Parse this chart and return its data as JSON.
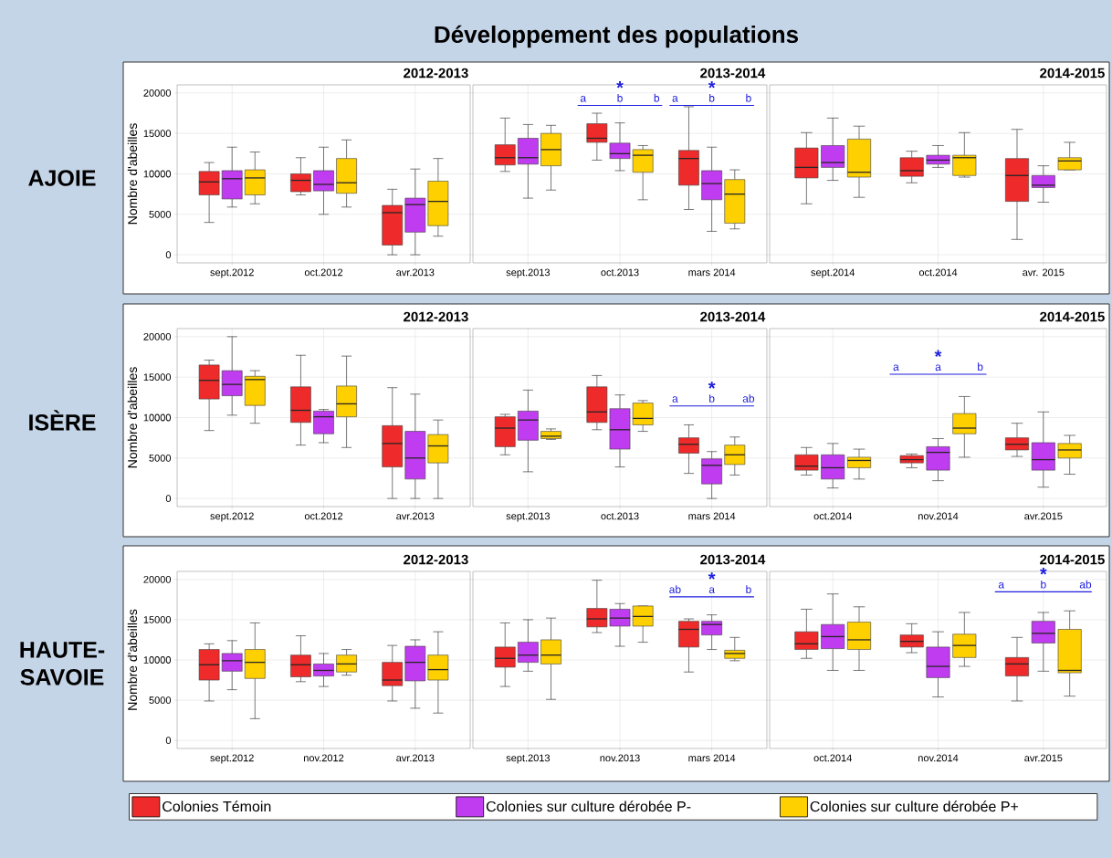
{
  "chart_data": [
    {
      "type": "box",
      "title": "2012-2013",
      "subtitle": "AJOIE",
      "ylabel": "Nombre d'abeilles",
      "annotations": [
        "Développement des populations"
      ],
      "categories": [
        "sept.2012",
        "oct.2012",
        "avr.2013"
      ],
      "ylim": [
        -1000,
        21000
      ],
      "yticks": [
        0,
        5000,
        10000,
        15000,
        20000
      ],
      "grid": true,
      "series": [
        {
          "color": "#ee2a2a",
          "boxes": [
            {
              "low": 4000,
              "q1": 7400,
              "median": 9000,
              "q3": 10300,
              "high": 11400
            },
            {
              "low": 7400,
              "q1": 7800,
              "median": 9200,
              "q3": 10000,
              "high": 12000
            },
            {
              "low": 0,
              "q1": 1200,
              "median": 5200,
              "q3": 6100,
              "high": 8100
            }
          ]
        },
        {
          "color": "#c03cf0",
          "boxes": [
            {
              "low": 5900,
              "q1": 6900,
              "median": 9400,
              "q3": 10400,
              "high": 13300
            },
            {
              "low": 5000,
              "q1": 7900,
              "median": 8700,
              "q3": 10400,
              "high": 13300
            },
            {
              "low": 0,
              "q1": 2800,
              "median": 6200,
              "q3": 7000,
              "high": 10600
            }
          ]
        },
        {
          "color": "#ffd000",
          "boxes": [
            {
              "low": 6300,
              "q1": 7400,
              "median": 9500,
              "q3": 10500,
              "high": 12700
            },
            {
              "low": 5900,
              "q1": 7600,
              "median": 8900,
              "q3": 11900,
              "high": 14200
            },
            {
              "low": 2300,
              "q1": 3600,
              "median": 6600,
              "q3": 9100,
              "high": 11900
            }
          ]
        }
      ]
    },
    {
      "type": "box",
      "title": "2013-2014",
      "tick_labels": "x",
      "categories": [
        "sept.2013",
        "oct.2013",
        "mars 2014"
      ],
      "ylim": [
        -1000,
        21000
      ],
      "yticks": [
        0,
        5000,
        10000,
        15000,
        20000
      ],
      "grid": true,
      "annotations": [
        "a",
        "b",
        "b",
        "*",
        "a",
        "b",
        "b",
        "*"
      ],
      "series": [
        {
          "color": "#ee2a2a",
          "boxes": [
            {
              "low": 10300,
              "q1": 11100,
              "median": 12000,
              "q3": 13600,
              "high": 16900
            },
            {
              "low": 11700,
              "q1": 13900,
              "median": 14400,
              "q3": 16200,
              "high": 17500
            },
            {
              "low": 5600,
              "q1": 8600,
              "median": 11900,
              "q3": 12900,
              "high": 18300
            }
          ]
        },
        {
          "color": "#c03cf0",
          "boxes": [
            {
              "low": 7000,
              "q1": 11200,
              "median": 12000,
              "q3": 14400,
              "high": 16100
            },
            {
              "low": 10400,
              "q1": 11900,
              "median": 12500,
              "q3": 13800,
              "high": 16300
            },
            {
              "low": 2900,
              "q1": 6800,
              "median": 8800,
              "q3": 10400,
              "high": 13300
            }
          ]
        },
        {
          "color": "#ffd000",
          "boxes": [
            {
              "low": 8000,
              "q1": 11000,
              "median": 13000,
              "q3": 15000,
              "high": 16000
            },
            {
              "low": 6800,
              "q1": 10200,
              "median": 12300,
              "q3": 13000,
              "high": 13500
            },
            {
              "low": 3200,
              "q1": 3900,
              "median": 7500,
              "q3": 9300,
              "high": 10500
            }
          ]
        }
      ]
    },
    {
      "type": "box",
      "title": "2014-2015",
      "tick_labels": "x",
      "categories": [
        "sept.2014",
        "oct.2014",
        "avr. 2015"
      ],
      "ylim": [
        -1000,
        21000
      ],
      "yticks": [
        0,
        5000,
        10000,
        15000,
        20000
      ],
      "grid": true,
      "series": [
        {
          "color": "#ee2a2a",
          "boxes": [
            {
              "low": 6300,
              "q1": 9500,
              "median": 10800,
              "q3": 13200,
              "high": 15100
            },
            {
              "low": 8900,
              "q1": 9700,
              "median": 10400,
              "q3": 12000,
              "high": 12800
            },
            {
              "low": 1900,
              "q1": 6600,
              "median": 9800,
              "q3": 11900,
              "high": 15500
            }
          ]
        },
        {
          "color": "#c03cf0",
          "boxes": [
            {
              "low": 9200,
              "q1": 10800,
              "median": 11400,
              "q3": 13500,
              "high": 16900
            },
            {
              "low": 10800,
              "q1": 11200,
              "median": 11700,
              "q3": 12300,
              "high": 13500
            },
            {
              "low": 6500,
              "q1": 8300,
              "median": 8600,
              "q3": 9800,
              "high": 11000
            }
          ]
        },
        {
          "color": "#ffd000",
          "boxes": [
            {
              "low": 7100,
              "q1": 9600,
              "median": 10200,
              "q3": 14300,
              "high": 15900
            },
            {
              "low": 9600,
              "q1": 9800,
              "median": 12000,
              "q3": 12300,
              "high": 15100
            },
            {
              "low": 10500,
              "q1": 10500,
              "median": 11600,
              "q3": 12000,
              "high": 13900
            }
          ]
        }
      ]
    },
    {
      "type": "box",
      "title": "2012-2013",
      "subtitle": "ISÈRE",
      "ylabel": "Nombre d'abeilles",
      "categories": [
        "sept.2012",
        "oct.2012",
        "avr.2013"
      ],
      "ylim": [
        -1000,
        21000
      ],
      "yticks": [
        0,
        5000,
        10000,
        15000,
        20000
      ],
      "grid": true,
      "series": [
        {
          "color": "#ee2a2a",
          "boxes": [
            {
              "low": 8400,
              "q1": 12300,
              "median": 14600,
              "q3": 16500,
              "high": 17100
            },
            {
              "low": 6600,
              "q1": 9400,
              "median": 10900,
              "q3": 13800,
              "high": 17700
            },
            {
              "low": 0,
              "q1": 3900,
              "median": 6800,
              "q3": 9000,
              "high": 13700
            }
          ]
        },
        {
          "color": "#c03cf0",
          "boxes": [
            {
              "low": 10300,
              "q1": 12700,
              "median": 14100,
              "q3": 15800,
              "high": 20000
            },
            {
              "low": 6900,
              "q1": 8000,
              "median": 10100,
              "q3": 10800,
              "high": 11000
            },
            {
              "low": 0,
              "q1": 2400,
              "median": 5000,
              "q3": 8300,
              "high": 12900
            }
          ]
        },
        {
          "color": "#ffd000",
          "boxes": [
            {
              "low": 9300,
              "q1": 11500,
              "median": 14700,
              "q3": 15100,
              "high": 15800
            },
            {
              "low": 6300,
              "q1": 10100,
              "median": 11700,
              "q3": 13900,
              "high": 17600
            },
            {
              "low": 0,
              "q1": 4400,
              "median": 6500,
              "q3": 7900,
              "high": 9700
            }
          ]
        }
      ]
    },
    {
      "type": "box",
      "title": "2013-2014",
      "tick_labels": "x",
      "categories": [
        "sept.2013",
        "oct.2013",
        "mars 2014"
      ],
      "ylim": [
        -1000,
        21000
      ],
      "yticks": [
        0,
        5000,
        10000,
        15000,
        20000
      ],
      "grid": true,
      "annotations": [
        "a",
        "b",
        "ab",
        "*"
      ],
      "series": [
        {
          "color": "#ee2a2a",
          "boxes": [
            {
              "low": 5400,
              "q1": 6400,
              "median": 8700,
              "q3": 10100,
              "high": 10400
            },
            {
              "low": 8500,
              "q1": 9400,
              "median": 10700,
              "q3": 13800,
              "high": 15200
            },
            {
              "low": 3100,
              "q1": 5600,
              "median": 6700,
              "q3": 7500,
              "high": 9100
            }
          ]
        },
        {
          "color": "#c03cf0",
          "boxes": [
            {
              "low": 3300,
              "q1": 7200,
              "median": 9700,
              "q3": 10800,
              "high": 13400
            },
            {
              "low": 3900,
              "q1": 6100,
              "median": 8500,
              "q3": 11100,
              "high": 12800
            },
            {
              "low": 0,
              "q1": 1800,
              "median": 4100,
              "q3": 4900,
              "high": 5800
            }
          ]
        },
        {
          "color": "#ffd000",
          "boxes": [
            {
              "low": 7300,
              "q1": 7400,
              "median": 7700,
              "q3": 8300,
              "high": 8600
            },
            {
              "low": 8300,
              "q1": 9100,
              "median": 9900,
              "q3": 11800,
              "high": 12100
            },
            {
              "low": 2900,
              "q1": 4200,
              "median": 5400,
              "q3": 6600,
              "high": 7600
            }
          ]
        }
      ]
    },
    {
      "type": "box",
      "title": "2014-2015",
      "tick_labels": "x",
      "categories": [
        "oct.2014",
        "nov.2014",
        "avr.2015"
      ],
      "ylim": [
        -1000,
        21000
      ],
      "yticks": [
        0,
        5000,
        10000,
        15000,
        20000
      ],
      "grid": true,
      "annotations": [
        "a",
        "a",
        "b",
        "*"
      ],
      "series": [
        {
          "color": "#ee2a2a",
          "boxes": [
            {
              "low": 2900,
              "q1": 3500,
              "median": 4000,
              "q3": 5400,
              "high": 6300
            },
            {
              "low": 3800,
              "q1": 4400,
              "median": 4800,
              "q3": 5300,
              "high": 5500
            },
            {
              "low": 5200,
              "q1": 6000,
              "median": 6700,
              "q3": 7500,
              "high": 9300
            }
          ]
        },
        {
          "color": "#c03cf0",
          "boxes": [
            {
              "low": 1300,
              "q1": 2400,
              "median": 3800,
              "q3": 5400,
              "high": 6800
            },
            {
              "low": 2200,
              "q1": 3500,
              "median": 5700,
              "q3": 6400,
              "high": 7400
            },
            {
              "low": 1400,
              "q1": 3500,
              "median": 4800,
              "q3": 6900,
              "high": 10700
            }
          ]
        },
        {
          "color": "#ffd000",
          "boxes": [
            {
              "low": 2400,
              "q1": 3800,
              "median": 4700,
              "q3": 5100,
              "high": 6100
            },
            {
              "low": 5100,
              "q1": 8000,
              "median": 8700,
              "q3": 10500,
              "high": 12600
            },
            {
              "low": 3000,
              "q1": 5000,
              "median": 6000,
              "q3": 6800,
              "high": 7800
            }
          ]
        }
      ]
    },
    {
      "type": "box",
      "title": "2012-2013",
      "subtitle": "HAUTE-SAVOIE",
      "ylabel": "Nombre d'abeilles",
      "legend": "bottom",
      "categories": [
        "sept.2012",
        "nov.2012",
        "avr.2013"
      ],
      "ylim": [
        -1000,
        21000
      ],
      "yticks": [
        0,
        5000,
        10000,
        15000,
        20000
      ],
      "grid": true,
      "series": [
        {
          "name": "Colonies Témoin",
          "color": "#ee2a2a",
          "boxes": [
            {
              "low": 4900,
              "q1": 7500,
              "median": 9400,
              "q3": 11300,
              "high": 12000
            },
            {
              "low": 7300,
              "q1": 7900,
              "median": 9400,
              "q3": 10600,
              "high": 13000
            },
            {
              "low": 4900,
              "q1": 6800,
              "median": 7500,
              "q3": 9700,
              "high": 11800
            }
          ]
        },
        {
          "name": "Colonies sur culture dérobée P-",
          "color": "#c03cf0",
          "boxes": [
            {
              "low": 6300,
              "q1": 8600,
              "median": 9900,
              "q3": 10800,
              "high": 12400
            },
            {
              "low": 6700,
              "q1": 8000,
              "median": 8700,
              "q3": 9500,
              "high": 10800
            },
            {
              "low": 4000,
              "q1": 7400,
              "median": 9700,
              "q3": 11700,
              "high": 12500
            }
          ]
        },
        {
          "name": "Colonies sur culture dérobée P+",
          "color": "#ffd000",
          "boxes": [
            {
              "low": 2700,
              "q1": 7700,
              "median": 9700,
              "q3": 11300,
              "high": 14600
            },
            {
              "low": 8100,
              "q1": 8500,
              "median": 9500,
              "q3": 10600,
              "high": 11300
            },
            {
              "low": 3400,
              "q1": 7500,
              "median": 8800,
              "q3": 10600,
              "high": 13500
            }
          ]
        }
      ]
    },
    {
      "type": "box",
      "title": "2013-2014",
      "tick_labels": "x",
      "categories": [
        "sept.2013",
        "nov.2013",
        "mars 2014"
      ],
      "ylim": [
        -1000,
        21000
      ],
      "yticks": [
        0,
        5000,
        10000,
        15000,
        20000
      ],
      "grid": true,
      "annotations": [
        "ab",
        "a",
        "b",
        "*"
      ],
      "series": [
        {
          "color": "#ee2a2a",
          "boxes": [
            {
              "low": 6700,
              "q1": 9100,
              "median": 10200,
              "q3": 11600,
              "high": 14600
            },
            {
              "low": 13400,
              "q1": 14100,
              "median": 15100,
              "q3": 16400,
              "high": 19900
            },
            {
              "low": 8500,
              "q1": 11600,
              "median": 13800,
              "q3": 14800,
              "high": 15100
            }
          ]
        },
        {
          "color": "#c03cf0",
          "boxes": [
            {
              "low": 8600,
              "q1": 9700,
              "median": 10600,
              "q3": 12200,
              "high": 15000
            },
            {
              "low": 11700,
              "q1": 14200,
              "median": 15200,
              "q3": 16300,
              "high": 17000
            },
            {
              "low": 11300,
              "q1": 13100,
              "median": 14400,
              "q3": 14800,
              "high": 15600
            }
          ]
        },
        {
          "color": "#ffd000",
          "boxes": [
            {
              "low": 5100,
              "q1": 9500,
              "median": 10600,
              "q3": 12500,
              "high": 15200
            },
            {
              "low": 12200,
              "q1": 14200,
              "median": 15400,
              "q3": 16700,
              "high": 16700
            },
            {
              "low": 9900,
              "q1": 10200,
              "median": 10800,
              "q3": 11200,
              "high": 12800
            }
          ]
        }
      ]
    },
    {
      "type": "box",
      "title": "2014-2015",
      "tick_labels": "x",
      "categories": [
        "oct.2014",
        "nov.2014",
        "avr.2015"
      ],
      "ylim": [
        -1000,
        21000
      ],
      "yticks": [
        0,
        5000,
        10000,
        15000,
        20000
      ],
      "grid": true,
      "annotations": [
        "a",
        "b",
        "ab",
        "*"
      ],
      "series": [
        {
          "color": "#ee2a2a",
          "boxes": [
            {
              "low": 10200,
              "q1": 11300,
              "median": 12000,
              "q3": 13500,
              "high": 16300
            },
            {
              "low": 10900,
              "q1": 11600,
              "median": 12300,
              "q3": 13100,
              "high": 14500
            },
            {
              "low": 4900,
              "q1": 8000,
              "median": 9500,
              "q3": 10300,
              "high": 12800
            }
          ]
        },
        {
          "color": "#c03cf0",
          "boxes": [
            {
              "low": 8700,
              "q1": 11400,
              "median": 12900,
              "q3": 14400,
              "high": 18200
            },
            {
              "low": 5400,
              "q1": 7800,
              "median": 9200,
              "q3": 11600,
              "high": 13500
            },
            {
              "low": 8600,
              "q1": 12100,
              "median": 13300,
              "q3": 14800,
              "high": 15900
            }
          ]
        },
        {
          "color": "#ffd000",
          "boxes": [
            {
              "low": 8700,
              "q1": 11300,
              "median": 12500,
              "q3": 14700,
              "high": 16600
            },
            {
              "low": 9200,
              "q1": 10300,
              "median": 11800,
              "q3": 13200,
              "high": 15900
            },
            {
              "low": 5500,
              "q1": 8400,
              "median": 8700,
              "q3": 13800,
              "high": 16100
            }
          ]
        }
      ]
    }
  ]
}
